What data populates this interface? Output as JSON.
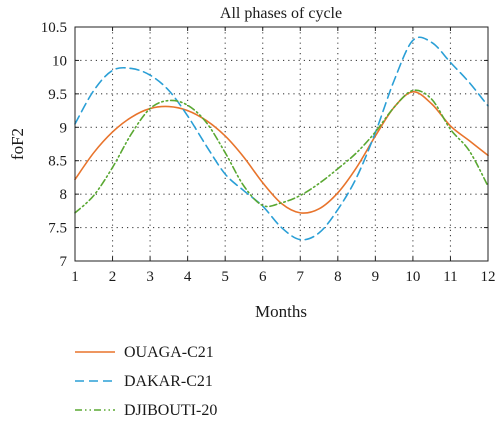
{
  "chart_data": {
    "type": "line",
    "title": "All phases of cycle",
    "xlabel": "Months",
    "ylabel": "foF2",
    "xlim": [
      1,
      12
    ],
    "ylim": [
      7,
      10.5
    ],
    "xticks": [
      1,
      2,
      3,
      4,
      5,
      6,
      7,
      8,
      9,
      10,
      11,
      12
    ],
    "yticks": [
      7,
      7.5,
      8,
      8.5,
      9,
      9.5,
      10,
      10.5
    ],
    "grid": true,
    "legend_position": "bottom-left",
    "series": [
      {
        "name": "OUAGA-C21",
        "color": "#e8742c",
        "dash": "solid",
        "x": [
          1,
          1.5,
          2,
          2.5,
          3,
          3.5,
          4,
          4.5,
          5,
          5.5,
          6,
          6.5,
          7,
          7.5,
          8,
          8.5,
          9,
          9.5,
          10,
          10.5,
          11,
          11.5,
          12
        ],
        "y": [
          8.22,
          8.62,
          8.93,
          9.15,
          9.28,
          9.31,
          9.25,
          9.1,
          8.87,
          8.55,
          8.17,
          7.86,
          7.72,
          7.78,
          8.02,
          8.4,
          8.87,
          9.3,
          9.53,
          9.35,
          9.02,
          8.8,
          8.58
        ]
      },
      {
        "name": "DAKAR-C21",
        "color": "#2a9fd6",
        "dash": "dashed",
        "x": [
          1,
          1.5,
          2,
          2.5,
          3,
          3.5,
          4,
          4.5,
          5,
          5.5,
          6,
          6.5,
          7,
          7.5,
          8,
          8.5,
          9,
          9.5,
          10,
          10.5,
          11,
          11.5,
          12
        ],
        "y": [
          9.05,
          9.55,
          9.85,
          9.88,
          9.78,
          9.55,
          9.17,
          8.72,
          8.3,
          8.05,
          7.82,
          7.5,
          7.32,
          7.42,
          7.77,
          8.25,
          8.92,
          9.7,
          10.3,
          10.27,
          9.97,
          9.67,
          9.32
        ]
      },
      {
        "name": "DJIBOUTI-20",
        "color": "#5aa832",
        "dash": "dashdot",
        "x": [
          1,
          1.5,
          2,
          2.5,
          3,
          3.5,
          4,
          4.5,
          5,
          5.5,
          6,
          6.5,
          7,
          7.5,
          8,
          8.5,
          9,
          9.5,
          10,
          10.5,
          11,
          11.5,
          12
        ],
        "y": [
          7.72,
          7.98,
          8.4,
          8.9,
          9.28,
          9.4,
          9.33,
          9.07,
          8.62,
          8.12,
          7.83,
          7.87,
          7.98,
          8.16,
          8.38,
          8.62,
          8.93,
          9.3,
          9.55,
          9.42,
          8.97,
          8.65,
          8.12
        ]
      }
    ]
  }
}
